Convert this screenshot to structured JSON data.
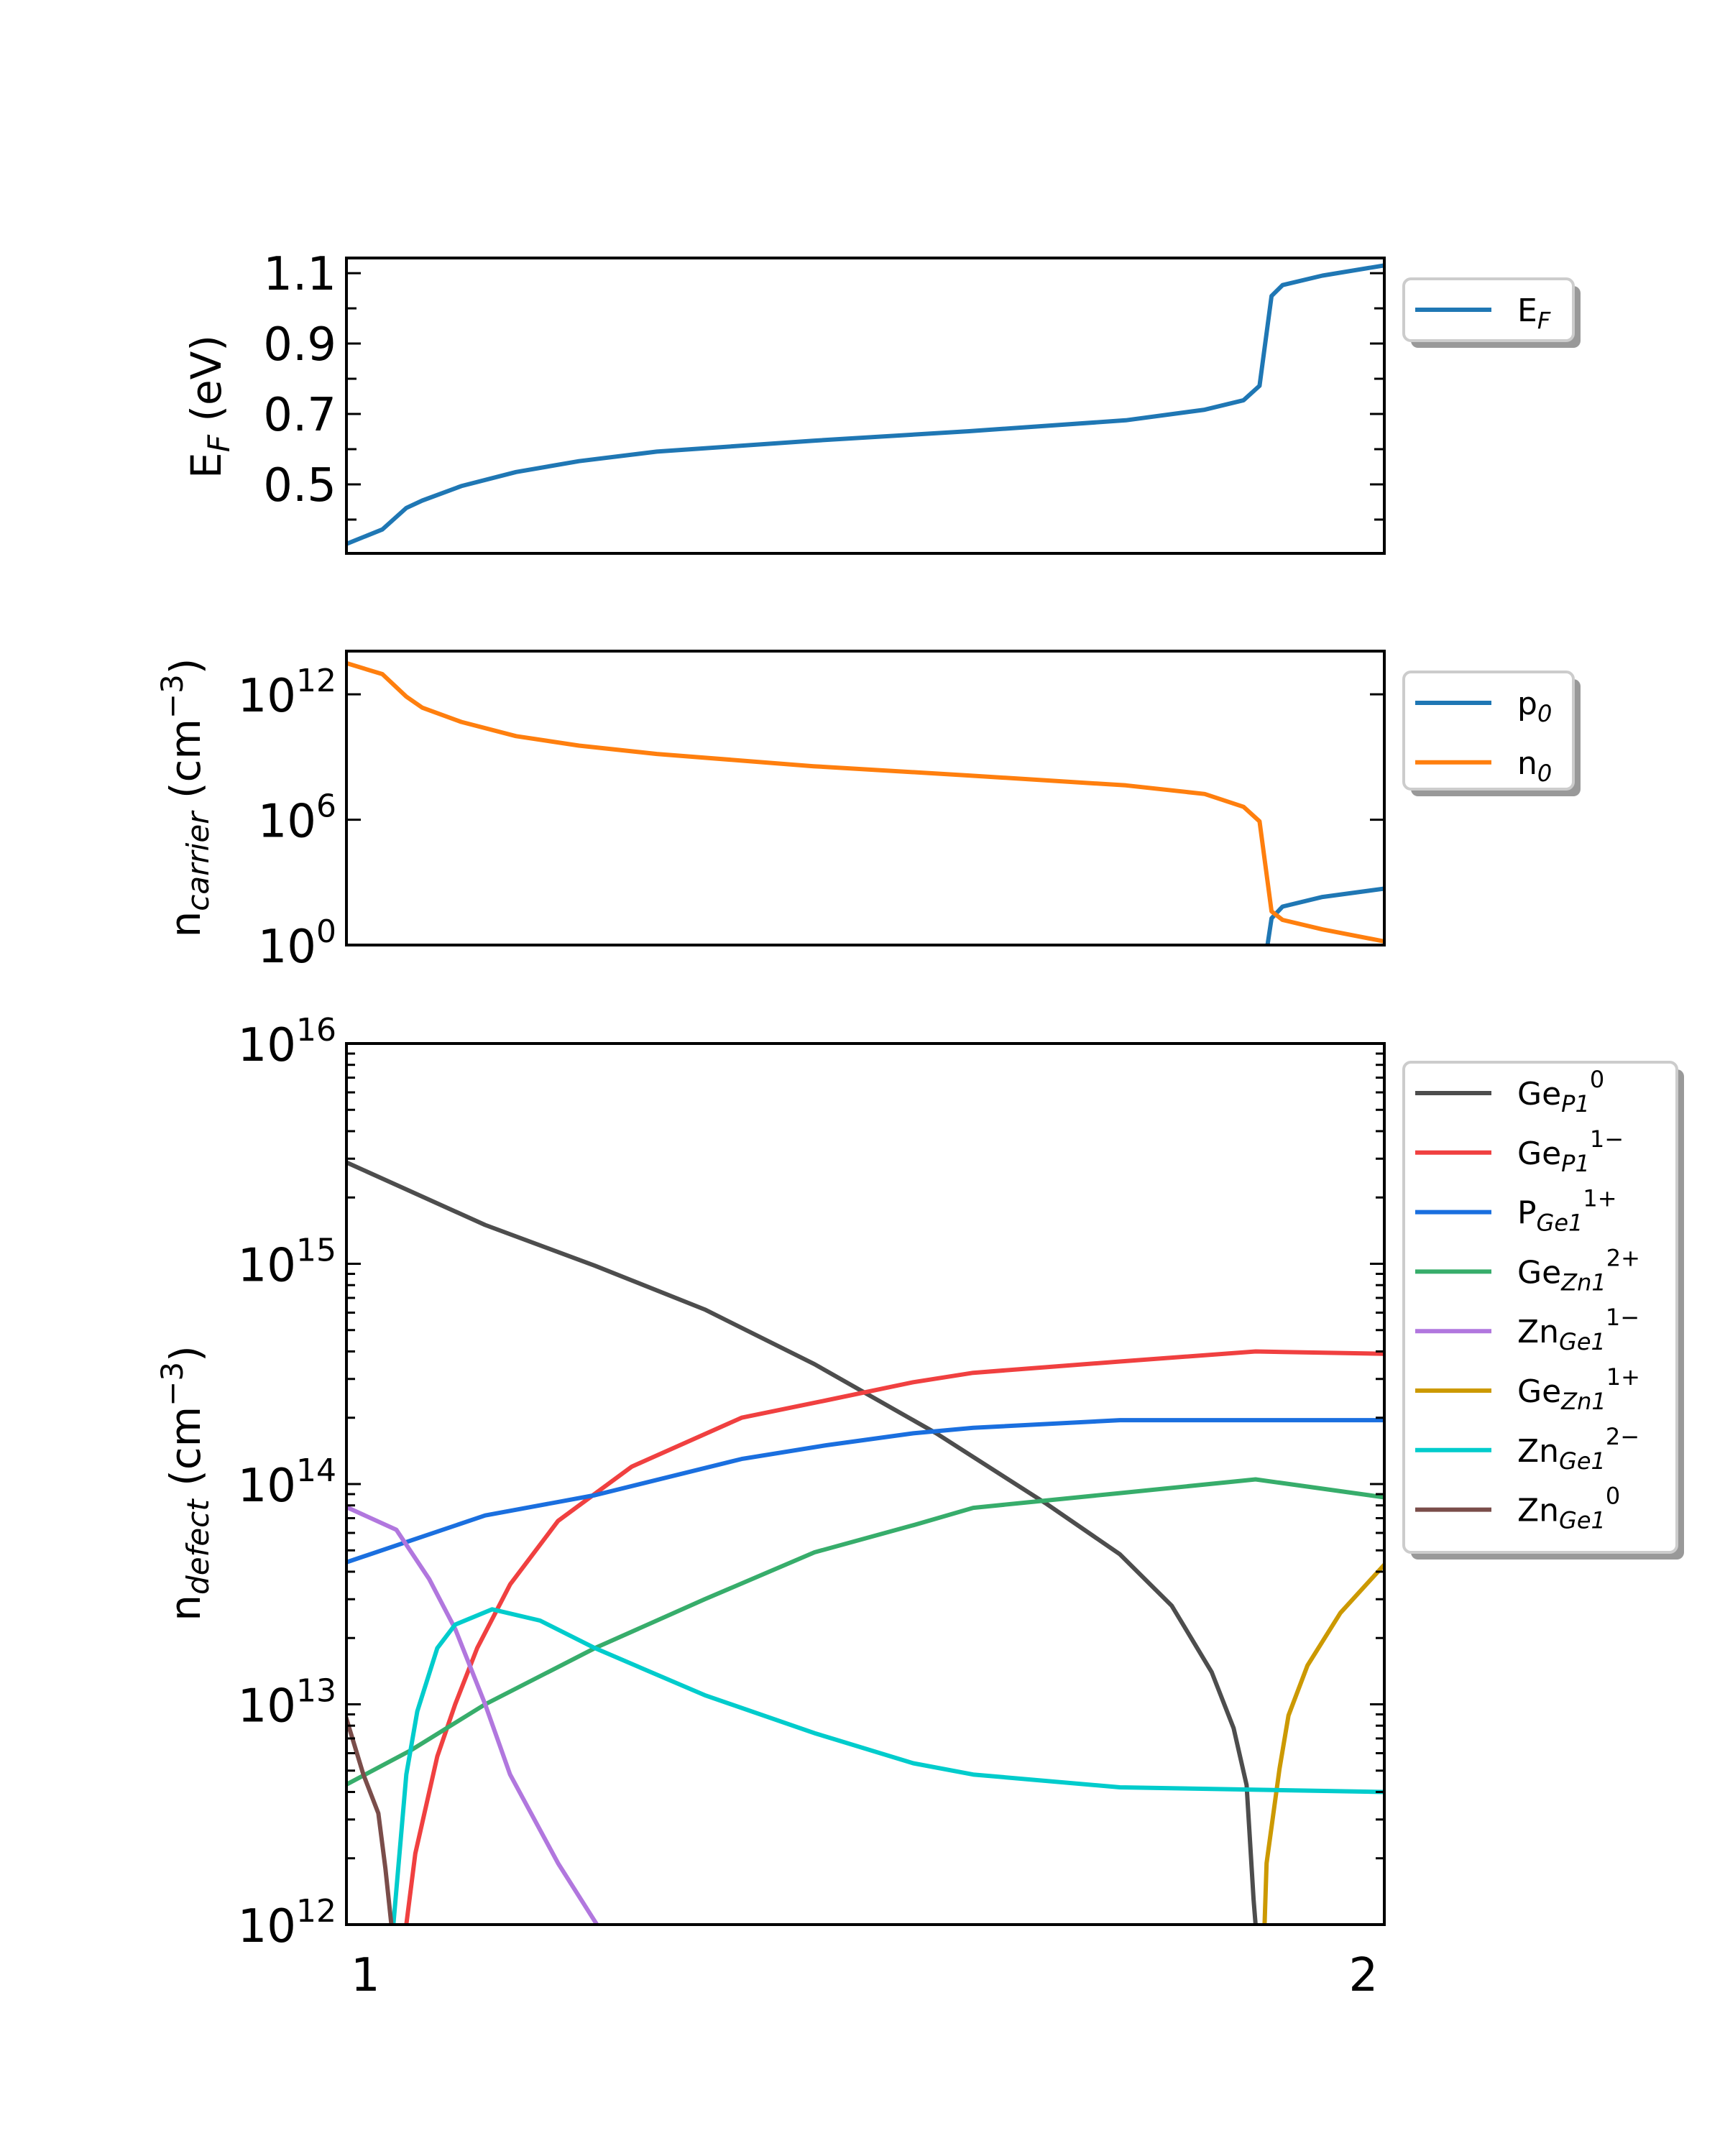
{
  "chart_data": [
    {
      "type": "line",
      "ylabel": {
        "main": "E",
        "sub": "F",
        "rest": " (eV)"
      },
      "xlim": [
        0.981,
        2.021
      ],
      "ylim": [
        0.304,
        1.143
      ],
      "yscale": "linear",
      "grid": false,
      "legend_position": "outside-right",
      "yticks": [
        {
          "value": 0.5,
          "label": "0.5"
        },
        {
          "value": 0.7,
          "label": "0.7"
        },
        {
          "value": 0.9,
          "label": "0.9"
        },
        {
          "value": 1.1,
          "label": "1.1"
        }
      ],
      "minor_yticks": [
        0.4,
        0.6,
        0.8,
        1.0
      ],
      "series": [
        {
          "name": "E_F",
          "legend": {
            "base": "E",
            "sub": "F",
            "sup": ""
          },
          "color": "#1f77b4",
          "x": [
            0.981,
            1.017,
            1.041,
            1.057,
            1.096,
            1.151,
            1.214,
            1.292,
            1.449,
            1.605,
            1.762,
            1.841,
            1.88,
            1.896,
            1.908,
            1.919,
            1.959,
            2.021
          ],
          "y": [
            0.331,
            0.372,
            0.433,
            0.454,
            0.495,
            0.535,
            0.566,
            0.593,
            0.624,
            0.651,
            0.682,
            0.712,
            0.739,
            0.78,
            1.035,
            1.066,
            1.093,
            1.122
          ]
        }
      ]
    },
    {
      "type": "line",
      "ylabel": {
        "main": "n",
        "sub": "carrier",
        "rest": " (cm",
        "sup": "−3",
        "end": ")"
      },
      "xlim": [
        0.981,
        2.021
      ],
      "ylim": [
        1,
        117000000000000.0
      ],
      "yscale": "log",
      "grid": false,
      "legend_position": "outside-right",
      "yticks": [
        {
          "value": 1,
          "base": "10",
          "exp": "0"
        },
        {
          "value": 1000000.0,
          "base": "10",
          "exp": "6"
        },
        {
          "value": 1000000000000.0,
          "base": "10",
          "exp": "12"
        }
      ],
      "series": [
        {
          "name": "p_0",
          "legend": {
            "base": "p",
            "sub": "0",
            "sup": ""
          },
          "color": "#1f77b4",
          "x": [
            1.902,
            1.904,
            1.908,
            1.919,
            1.959,
            2.021
          ],
          "y": [
            0.01,
            1.0,
            19,
            69,
            200,
            500
          ]
        },
        {
          "name": "n_0",
          "legend": {
            "base": "n",
            "sub": "0",
            "sup": ""
          },
          "color": "#ff7f0e",
          "x": [
            0.981,
            1.017,
            1.041,
            1.057,
            1.096,
            1.151,
            1.214,
            1.292,
            1.449,
            1.605,
            1.762,
            1.841,
            1.88,
            1.896,
            1.908,
            1.919,
            1.959,
            2.021
          ],
          "y": [
            31000000000000.0,
            9300000000000.0,
            780000000000.0,
            230000000000.0,
            48000000000.0,
            10000000000.0,
            3500000000.0,
            1400000000.0,
            360000000.0,
            130000000.0,
            44000000.0,
            17000000.0,
            4100000.0,
            830000.0,
            41,
            16,
            5.6,
            1.5
          ]
        }
      ]
    },
    {
      "type": "line",
      "ylabel": {
        "main": "n",
        "sub": "defect",
        "rest": " (cm",
        "sup": "−3",
        "end": ")"
      },
      "xlim": [
        0.981,
        2.021
      ],
      "ylim": [
        1000000000000.0,
        1e+16
      ],
      "yscale": "log",
      "grid": false,
      "legend_position": "outside-right",
      "xticks": [
        {
          "value": 1,
          "label": "1"
        },
        {
          "value": 2,
          "label": "2"
        }
      ],
      "yticks": [
        {
          "value": 1000000000000.0,
          "base": "10",
          "exp": "12"
        },
        {
          "value": 10000000000000.0,
          "base": "10",
          "exp": "13"
        },
        {
          "value": 100000000000000.0,
          "base": "10",
          "exp": "14"
        },
        {
          "value": 1000000000000000.0,
          "base": "10",
          "exp": "15"
        },
        {
          "value": 1e+16,
          "base": "10",
          "exp": "16"
        }
      ],
      "series": [
        {
          "name": "Ge_P1^0",
          "legend": {
            "base": "Ge",
            "sub": "P1",
            "sup": "0"
          },
          "color": "#4d4d4d",
          "x": [
            0.98,
            1.12,
            1.23,
            1.34,
            1.45,
            1.572,
            1.683,
            1.756,
            1.808,
            1.848,
            1.87,
            1.883,
            1.89,
            1.892,
            1.894
          ],
          "y": [
            2900000000000000.0,
            1500000000000000.0,
            980000000000000.0,
            620000000000000.0,
            350000000000000.0,
            170000000000000.0,
            81000000000000.0,
            48000000000000.0,
            28000000000000.0,
            14000000000000.0,
            7800000000000.0,
            4300000000000.0,
            1300000000000.0,
            1000000000000.0,
            100000000000.0
          ]
        },
        {
          "name": "Ge_P1^1-",
          "legend": {
            "base": "Ge",
            "sub": "P1",
            "sup": "1−"
          },
          "color": "#f04040",
          "x": [
            1.035,
            1.041,
            1.05,
            1.072,
            1.09,
            1.112,
            1.145,
            1.193,
            1.267,
            1.377,
            1.462,
            1.549,
            1.609,
            1.756,
            1.892,
            2.021
          ],
          "y": [
            300000000000.0,
            1000000000000.0,
            2100000000000.0,
            5800000000000.0,
            10000000000000.0,
            18000000000000.0,
            35000000000000.0,
            68000000000000.0,
            120000000000000.0,
            200000000000000.0,
            240000000000000.0,
            290000000000000.0,
            320000000000000.0,
            360000000000000.0,
            400000000000000.0,
            390000000000000.0
          ]
        },
        {
          "name": "P_Ge1^1+",
          "legend": {
            "base": "P",
            "sub": "Ge1",
            "sup": "1+"
          },
          "color": "#1a6fdf",
          "x": [
            0.98,
            1.12,
            1.23,
            1.377,
            1.462,
            1.549,
            1.609,
            1.756,
            2.021
          ],
          "y": [
            44000000000000.0,
            72000000000000.0,
            89000000000000.0,
            130000000000000.0,
            150000000000000.0,
            170000000000000.0,
            180000000000000.0,
            195000000000000.0,
            195000000000000.0
          ]
        },
        {
          "name": "Ge_Zn1^2+",
          "legend": {
            "base": "Ge",
            "sub": "Zn1",
            "sup": "2+"
          },
          "color": "#37ad6b",
          "x": [
            0.98,
            1.046,
            1.12,
            1.23,
            1.34,
            1.45,
            1.549,
            1.609,
            1.756,
            1.892,
            2.021
          ],
          "y": [
            4300000000000.0,
            6200000000000.0,
            10000000000000.0,
            18000000000000.0,
            30000000000000.0,
            49000000000000.0,
            65000000000000.0,
            78000000000000.0,
            91000000000000.0,
            105000000000000.0,
            87000000000000.0
          ]
        },
        {
          "name": "Zn_Ge1^1-",
          "legend": {
            "base": "Zn",
            "sub": "Ge1",
            "sup": "1−"
          },
          "color": "#b177de",
          "x": [
            0.98,
            1.031,
            1.064,
            1.09,
            1.12,
            1.145,
            1.193,
            1.232,
            1.25
          ],
          "y": [
            79000000000000.0,
            62000000000000.0,
            37000000000000.0,
            22000000000000.0,
            10000000000000.0,
            4800000000000.0,
            1900000000000.0,
            1000000000000.0,
            600000000000.0
          ]
        },
        {
          "name": "Ge_Zn1^1+",
          "legend": {
            "base": "Ge",
            "sub": "Zn1",
            "sup": "1+"
          },
          "color": "#cc9900",
          "x": [
            1.899,
            1.901,
            1.903,
            1.916,
            1.925,
            1.944,
            1.977,
            2.021
          ],
          "y": [
            100000000000.0,
            1000000000000.0,
            1900000000000.0,
            5100000000000.0,
            8900000000000.0,
            15000000000000.0,
            26000000000000.0,
            43000000000000.0
          ]
        },
        {
          "name": "Zn_Ge1^2-",
          "legend": {
            "base": "Zn",
            "sub": "Ge1",
            "sup": "2−"
          },
          "color": "#00cccc",
          "x": [
            1.024,
            1.028,
            1.041,
            1.052,
            1.072,
            1.09,
            1.127,
            1.175,
            1.23,
            1.34,
            1.45,
            1.549,
            1.609,
            1.756,
            2.021
          ],
          "y": [
            100000000000.0,
            1000000000000.0,
            4800000000000.0,
            9300000000000.0,
            18000000000000.0,
            23000000000000.0,
            27000000000000.0,
            24000000000000.0,
            18000000000000.0,
            11000000000000.0,
            7400000000000.0,
            5400000000000.0,
            4800000000000.0,
            4200000000000.0,
            4000000000000.0
          ]
        },
        {
          "name": "Zn_Ge1^0",
          "legend": {
            "base": "Zn",
            "sub": "Ge1",
            "sup": "0"
          },
          "color": "#7a4d4a",
          "x": [
            0.98,
            0.998,
            1.013,
            1.02,
            1.026,
            1.03
          ],
          "y": [
            8900000000000.0,
            4800000000000.0,
            3200000000000.0,
            1800000000000.0,
            1000000000000.0,
            100000000000.0
          ]
        }
      ]
    }
  ]
}
